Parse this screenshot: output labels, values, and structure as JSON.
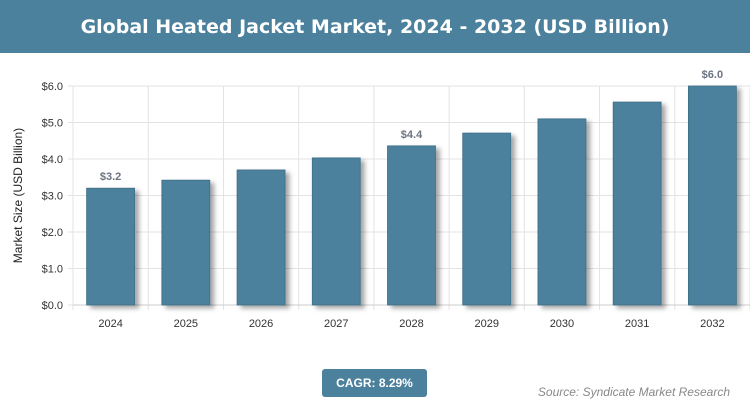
{
  "chart_data": {
    "type": "bar",
    "title": "Global Heated Jacket Market, 2024 - 2032 (USD Billion)",
    "xlabel": "",
    "ylabel": "Market Size (USD Billion)",
    "categories": [
      "2024",
      "2025",
      "2026",
      "2027",
      "2028",
      "2029",
      "2030",
      "2031",
      "2032"
    ],
    "values": [
      3.2,
      3.42,
      3.7,
      4.03,
      4.36,
      4.71,
      5.1,
      5.56,
      6.0
    ],
    "data_labels": {
      "0": "$3.2",
      "4": "$4.4",
      "8": "$6.0"
    },
    "ylim": [
      0,
      6
    ],
    "yticks": [
      "$0.0",
      "$1.0",
      "$2.0",
      "$3.0",
      "$4.0",
      "$5.0",
      "$6.0"
    ],
    "grid": true,
    "bar_color": "#4b819c"
  },
  "cagr": "CAGR: 8.29%",
  "source": "Source: Syndicate Market Research"
}
